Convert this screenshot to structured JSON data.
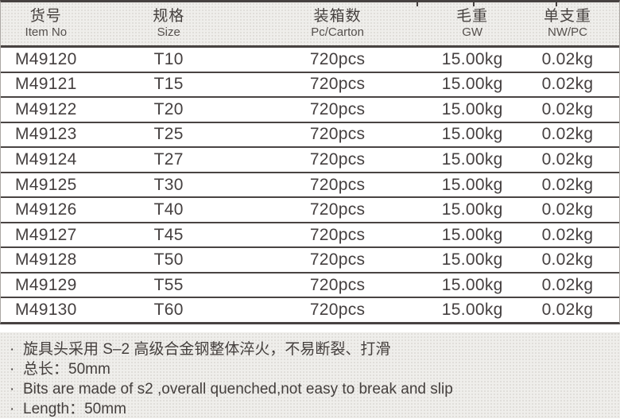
{
  "table": {
    "columns": [
      {
        "zh": "货号",
        "en": "Item No"
      },
      {
        "zh": "规格",
        "en": "Size"
      },
      {
        "zh": "装箱数",
        "en": "Pc/Carton"
      },
      {
        "zh": "毛重",
        "en": "GW"
      },
      {
        "zh": "单支重",
        "en": "NW/PC"
      }
    ],
    "rows": [
      {
        "item_no": "M49120",
        "size": "T10",
        "pc_carton": "720pcs",
        "gw": "15.00kg",
        "nw_pc": "0.02kg"
      },
      {
        "item_no": "M49121",
        "size": "T15",
        "pc_carton": "720pcs",
        "gw": "15.00kg",
        "nw_pc": "0.02kg"
      },
      {
        "item_no": "M49122",
        "size": "T20",
        "pc_carton": "720pcs",
        "gw": "15.00kg",
        "nw_pc": "0.02kg"
      },
      {
        "item_no": "M49123",
        "size": "T25",
        "pc_carton": "720pcs",
        "gw": "15.00kg",
        "nw_pc": "0.02kg"
      },
      {
        "item_no": "M49124",
        "size": "T27",
        "pc_carton": "720pcs",
        "gw": "15.00kg",
        "nw_pc": "0.02kg"
      },
      {
        "item_no": "M49125",
        "size": "T30",
        "pc_carton": "720pcs",
        "gw": "15.00kg",
        "nw_pc": "0.02kg"
      },
      {
        "item_no": "M49126",
        "size": "T40",
        "pc_carton": "720pcs",
        "gw": "15.00kg",
        "nw_pc": "0.02kg"
      },
      {
        "item_no": "M49127",
        "size": "T45",
        "pc_carton": "720pcs",
        "gw": "15.00kg",
        "nw_pc": "0.02kg"
      },
      {
        "item_no": "M49128",
        "size": "T50",
        "pc_carton": "720pcs",
        "gw": "15.00kg",
        "nw_pc": "0.02kg"
      },
      {
        "item_no": "M49129",
        "size": "T55",
        "pc_carton": "720pcs",
        "gw": "15.00kg",
        "nw_pc": "0.02kg"
      },
      {
        "item_no": "M49130",
        "size": "T60",
        "pc_carton": "720pcs",
        "gw": "15.00kg",
        "nw_pc": "0.02kg"
      }
    ]
  },
  "notes": {
    "bullet": "·",
    "lines": [
      "旋具头采用 S–2 高级合金钢整体淬火，不易断裂、打滑",
      "总长：50mm",
      "Bits are made of s2 ,overall quenched,not easy to break and slip",
      "Length：50mm"
    ]
  },
  "colors": {
    "border_dark": "#474241",
    "text": "#453f3d",
    "panel_bg": "#efeeeb",
    "row_bg": "#ffffff"
  }
}
